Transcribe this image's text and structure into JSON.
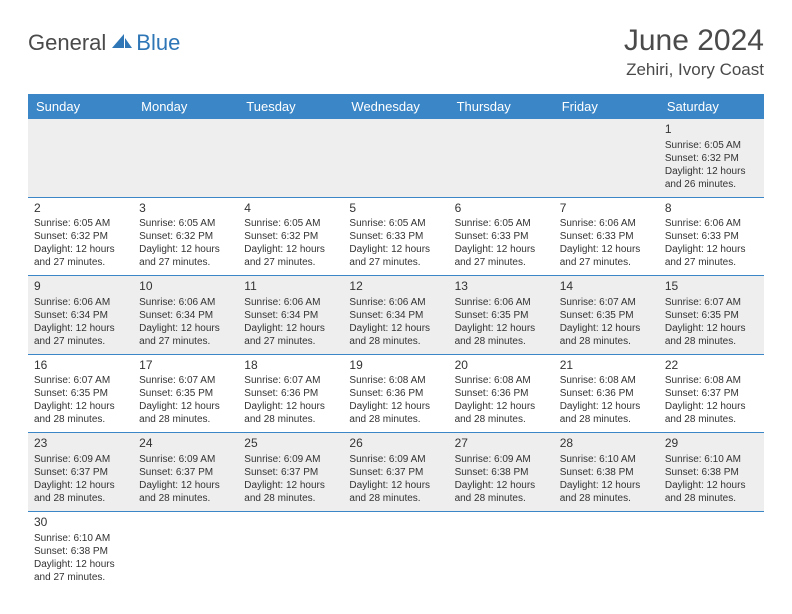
{
  "logo": {
    "text1": "General",
    "text2": "Blue"
  },
  "title": "June 2024",
  "subtitle": "Zehiri, Ivory Coast",
  "colors": {
    "header_bg": "#3b86c6",
    "header_fg": "#ffffff",
    "grid_line": "#3b86c6",
    "grey_cell": "#eeeeee",
    "text": "#333333",
    "logo_blue": "#2e76b6",
    "logo_grey": "#4a4a4a"
  },
  "dayNames": [
    "Sunday",
    "Monday",
    "Tuesday",
    "Wednesday",
    "Thursday",
    "Friday",
    "Saturday"
  ],
  "weeks": [
    {
      "grey": true,
      "cells": [
        {
          "empty": true
        },
        {
          "empty": true
        },
        {
          "empty": true
        },
        {
          "empty": true
        },
        {
          "empty": true
        },
        {
          "empty": true
        },
        {
          "day": "1",
          "sunrise": "Sunrise: 6:05 AM",
          "sunset": "Sunset: 6:32 PM",
          "d1": "Daylight: 12 hours",
          "d2": "and 26 minutes."
        }
      ]
    },
    {
      "grey": false,
      "cells": [
        {
          "day": "2",
          "sunrise": "Sunrise: 6:05 AM",
          "sunset": "Sunset: 6:32 PM",
          "d1": "Daylight: 12 hours",
          "d2": "and 27 minutes."
        },
        {
          "day": "3",
          "sunrise": "Sunrise: 6:05 AM",
          "sunset": "Sunset: 6:32 PM",
          "d1": "Daylight: 12 hours",
          "d2": "and 27 minutes."
        },
        {
          "day": "4",
          "sunrise": "Sunrise: 6:05 AM",
          "sunset": "Sunset: 6:32 PM",
          "d1": "Daylight: 12 hours",
          "d2": "and 27 minutes."
        },
        {
          "day": "5",
          "sunrise": "Sunrise: 6:05 AM",
          "sunset": "Sunset: 6:33 PM",
          "d1": "Daylight: 12 hours",
          "d2": "and 27 minutes."
        },
        {
          "day": "6",
          "sunrise": "Sunrise: 6:05 AM",
          "sunset": "Sunset: 6:33 PM",
          "d1": "Daylight: 12 hours",
          "d2": "and 27 minutes."
        },
        {
          "day": "7",
          "sunrise": "Sunrise: 6:06 AM",
          "sunset": "Sunset: 6:33 PM",
          "d1": "Daylight: 12 hours",
          "d2": "and 27 minutes."
        },
        {
          "day": "8",
          "sunrise": "Sunrise: 6:06 AM",
          "sunset": "Sunset: 6:33 PM",
          "d1": "Daylight: 12 hours",
          "d2": "and 27 minutes."
        }
      ]
    },
    {
      "grey": true,
      "cells": [
        {
          "day": "9",
          "sunrise": "Sunrise: 6:06 AM",
          "sunset": "Sunset: 6:34 PM",
          "d1": "Daylight: 12 hours",
          "d2": "and 27 minutes."
        },
        {
          "day": "10",
          "sunrise": "Sunrise: 6:06 AM",
          "sunset": "Sunset: 6:34 PM",
          "d1": "Daylight: 12 hours",
          "d2": "and 27 minutes."
        },
        {
          "day": "11",
          "sunrise": "Sunrise: 6:06 AM",
          "sunset": "Sunset: 6:34 PM",
          "d1": "Daylight: 12 hours",
          "d2": "and 27 minutes."
        },
        {
          "day": "12",
          "sunrise": "Sunrise: 6:06 AM",
          "sunset": "Sunset: 6:34 PM",
          "d1": "Daylight: 12 hours",
          "d2": "and 28 minutes."
        },
        {
          "day": "13",
          "sunrise": "Sunrise: 6:06 AM",
          "sunset": "Sunset: 6:35 PM",
          "d1": "Daylight: 12 hours",
          "d2": "and 28 minutes."
        },
        {
          "day": "14",
          "sunrise": "Sunrise: 6:07 AM",
          "sunset": "Sunset: 6:35 PM",
          "d1": "Daylight: 12 hours",
          "d2": "and 28 minutes."
        },
        {
          "day": "15",
          "sunrise": "Sunrise: 6:07 AM",
          "sunset": "Sunset: 6:35 PM",
          "d1": "Daylight: 12 hours",
          "d2": "and 28 minutes."
        }
      ]
    },
    {
      "grey": false,
      "cells": [
        {
          "day": "16",
          "sunrise": "Sunrise: 6:07 AM",
          "sunset": "Sunset: 6:35 PM",
          "d1": "Daylight: 12 hours",
          "d2": "and 28 minutes."
        },
        {
          "day": "17",
          "sunrise": "Sunrise: 6:07 AM",
          "sunset": "Sunset: 6:35 PM",
          "d1": "Daylight: 12 hours",
          "d2": "and 28 minutes."
        },
        {
          "day": "18",
          "sunrise": "Sunrise: 6:07 AM",
          "sunset": "Sunset: 6:36 PM",
          "d1": "Daylight: 12 hours",
          "d2": "and 28 minutes."
        },
        {
          "day": "19",
          "sunrise": "Sunrise: 6:08 AM",
          "sunset": "Sunset: 6:36 PM",
          "d1": "Daylight: 12 hours",
          "d2": "and 28 minutes."
        },
        {
          "day": "20",
          "sunrise": "Sunrise: 6:08 AM",
          "sunset": "Sunset: 6:36 PM",
          "d1": "Daylight: 12 hours",
          "d2": "and 28 minutes."
        },
        {
          "day": "21",
          "sunrise": "Sunrise: 6:08 AM",
          "sunset": "Sunset: 6:36 PM",
          "d1": "Daylight: 12 hours",
          "d2": "and 28 minutes."
        },
        {
          "day": "22",
          "sunrise": "Sunrise: 6:08 AM",
          "sunset": "Sunset: 6:37 PM",
          "d1": "Daylight: 12 hours",
          "d2": "and 28 minutes."
        }
      ]
    },
    {
      "grey": true,
      "cells": [
        {
          "day": "23",
          "sunrise": "Sunrise: 6:09 AM",
          "sunset": "Sunset: 6:37 PM",
          "d1": "Daylight: 12 hours",
          "d2": "and 28 minutes."
        },
        {
          "day": "24",
          "sunrise": "Sunrise: 6:09 AM",
          "sunset": "Sunset: 6:37 PM",
          "d1": "Daylight: 12 hours",
          "d2": "and 28 minutes."
        },
        {
          "day": "25",
          "sunrise": "Sunrise: 6:09 AM",
          "sunset": "Sunset: 6:37 PM",
          "d1": "Daylight: 12 hours",
          "d2": "and 28 minutes."
        },
        {
          "day": "26",
          "sunrise": "Sunrise: 6:09 AM",
          "sunset": "Sunset: 6:37 PM",
          "d1": "Daylight: 12 hours",
          "d2": "and 28 minutes."
        },
        {
          "day": "27",
          "sunrise": "Sunrise: 6:09 AM",
          "sunset": "Sunset: 6:38 PM",
          "d1": "Daylight: 12 hours",
          "d2": "and 28 minutes."
        },
        {
          "day": "28",
          "sunrise": "Sunrise: 6:10 AM",
          "sunset": "Sunset: 6:38 PM",
          "d1": "Daylight: 12 hours",
          "d2": "and 28 minutes."
        },
        {
          "day": "29",
          "sunrise": "Sunrise: 6:10 AM",
          "sunset": "Sunset: 6:38 PM",
          "d1": "Daylight: 12 hours",
          "d2": "and 28 minutes."
        }
      ]
    },
    {
      "grey": false,
      "last": true,
      "cells": [
        {
          "day": "30",
          "sunrise": "Sunrise: 6:10 AM",
          "sunset": "Sunset: 6:38 PM",
          "d1": "Daylight: 12 hours",
          "d2": "and 27 minutes."
        },
        {
          "empty": true,
          "white": true
        },
        {
          "empty": true,
          "white": true
        },
        {
          "empty": true,
          "white": true
        },
        {
          "empty": true,
          "white": true
        },
        {
          "empty": true,
          "white": true
        },
        {
          "empty": true,
          "white": true
        }
      ]
    }
  ]
}
